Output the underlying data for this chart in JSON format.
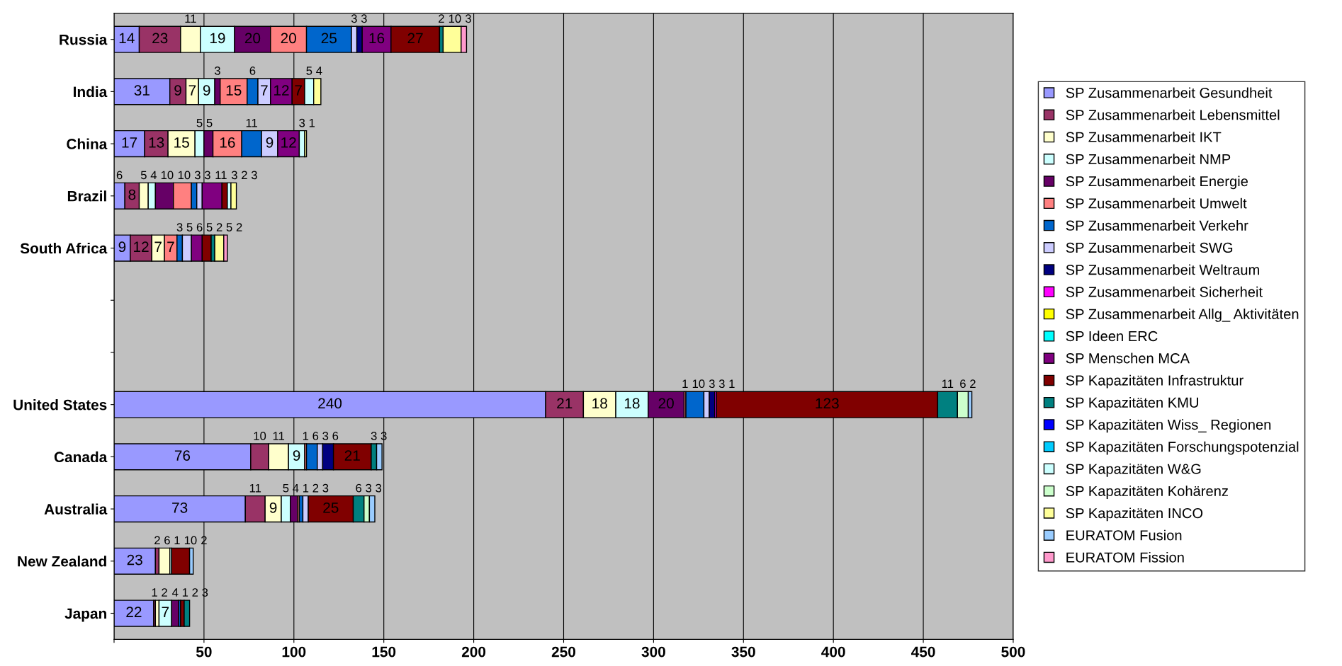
{
  "chart_data": {
    "type": "bar",
    "orientation": "horizontal",
    "stacked": true,
    "data_labels": true,
    "grid": "x",
    "legend": "right",
    "categories": [
      "Russia",
      "India",
      "China",
      "Brazil",
      "South Africa",
      null,
      null,
      "United States",
      "Canada",
      "Australia",
      "New Zealand",
      "Japan"
    ],
    "xlim": [
      0,
      500
    ],
    "xticks": [
      {
        "value": 0,
        "label": null
      },
      50,
      100,
      150,
      200,
      250,
      300,
      350,
      400,
      450,
      500
    ],
    "series": [
      {
        "name": "SP Zusammenarbeit Gesundheit",
        "color": "#9999ff",
        "values": [
          14,
          31,
          17,
          6,
          9,
          null,
          null,
          240,
          76,
          73,
          23,
          22
        ]
      },
      {
        "name": "SP Zusammenarbeit Lebensmittel",
        "color": "#993366",
        "values": [
          23,
          9,
          13,
          8,
          12,
          null,
          null,
          21,
          10,
          11,
          2,
          1
        ]
      },
      {
        "name": "SP Zusammenarbeit IKT",
        "color": "#ffffcc",
        "values": [
          11,
          7,
          15,
          5,
          7,
          null,
          null,
          18,
          11,
          9,
          6,
          2
        ]
      },
      {
        "name": "SP Zusammenarbeit NMP",
        "color": "#ccffff",
        "values": [
          19,
          9,
          5,
          4,
          null,
          null,
          null,
          18,
          9,
          5,
          1,
          7
        ]
      },
      {
        "name": "SP Zusammenarbeit Energie",
        "color": "#660066",
        "values": [
          20,
          3,
          5,
          10,
          null,
          null,
          null,
          20,
          null,
          4,
          null,
          4
        ]
      },
      {
        "name": "SP Zusammenarbeit Umwelt",
        "color": "#ff8080",
        "values": [
          20,
          15,
          16,
          10,
          7,
          null,
          null,
          1,
          1,
          1,
          null,
          null
        ]
      },
      {
        "name": "SP Zusammenarbeit Verkehr",
        "color": "#0066cc",
        "values": [
          25,
          6,
          11,
          3,
          3,
          null,
          null,
          10,
          6,
          2,
          null,
          1
        ]
      },
      {
        "name": "SP Zusammenarbeit SWG",
        "color": "#ccccff",
        "values": [
          3,
          7,
          9,
          3,
          5,
          null,
          null,
          3,
          3,
          3,
          null,
          null
        ]
      },
      {
        "name": "SP Zusammenarbeit Weltraum",
        "color": "#000080",
        "values": [
          3,
          null,
          null,
          null,
          null,
          null,
          null,
          3,
          6,
          null,
          null,
          null
        ]
      },
      {
        "name": "SP Zusammenarbeit Sicherheit",
        "color": "#ff00ff",
        "values": [
          null,
          null,
          null,
          null,
          null,
          null,
          null,
          1,
          null,
          null,
          null,
          null
        ]
      },
      {
        "name": "SP Zusammenarbeit Allg_ Aktivitäten",
        "color": "#ffff00",
        "values": [
          null,
          null,
          null,
          null,
          null,
          null,
          null,
          null,
          null,
          null,
          null,
          null
        ]
      },
      {
        "name": "SP Ideen ERC",
        "color": "#00ffff",
        "values": [
          null,
          null,
          null,
          null,
          null,
          null,
          null,
          null,
          null,
          null,
          null,
          null
        ]
      },
      {
        "name": "SP Menschen MCA",
        "color": "#800080",
        "values": [
          16,
          12,
          12,
          11,
          6,
          null,
          null,
          null,
          null,
          null,
          null,
          null
        ]
      },
      {
        "name": "SP Kapazitäten Infrastruktur",
        "color": "#800000",
        "values": [
          27,
          7,
          null,
          3,
          5,
          null,
          null,
          123,
          21,
          25,
          10,
          2
        ]
      },
      {
        "name": "SP Kapazitäten KMU",
        "color": "#008080",
        "values": [
          2,
          null,
          null,
          null,
          2,
          null,
          null,
          11,
          3,
          6,
          null,
          3
        ]
      },
      {
        "name": "SP Kapazitäten Wiss_ Regionen",
        "color": "#0000ff",
        "values": [
          null,
          null,
          null,
          null,
          null,
          null,
          null,
          null,
          null,
          null,
          null,
          null
        ]
      },
      {
        "name": "SP Kapazitäten Forschungspotenzial",
        "color": "#00ccff",
        "values": [
          null,
          null,
          null,
          null,
          null,
          null,
          null,
          null,
          null,
          null,
          null,
          null
        ]
      },
      {
        "name": "SP Kapazitäten W&G",
        "color": "#ccffff",
        "values": [
          null,
          5,
          3,
          2,
          null,
          null,
          null,
          null,
          null,
          null,
          null,
          null
        ]
      },
      {
        "name": "SP Kapazitäten Kohärenz",
        "color": "#ccffcc",
        "values": [
          null,
          null,
          null,
          null,
          null,
          null,
          null,
          6,
          null,
          3,
          null,
          null
        ]
      },
      {
        "name": "SP Kapazitäten INCO",
        "color": "#ffff99",
        "values": [
          10,
          4,
          1,
          3,
          5,
          null,
          null,
          null,
          null,
          null,
          null,
          null
        ]
      },
      {
        "name": "EURATOM Fusion",
        "color": "#99ccff",
        "values": [
          null,
          null,
          null,
          null,
          null,
          null,
          null,
          2,
          3,
          3,
          2,
          null
        ]
      },
      {
        "name": "EURATOM Fission",
        "color": "#ff99cc",
        "values": [
          3,
          null,
          null,
          null,
          2,
          null,
          null,
          null,
          null,
          null,
          null,
          null
        ]
      }
    ]
  }
}
